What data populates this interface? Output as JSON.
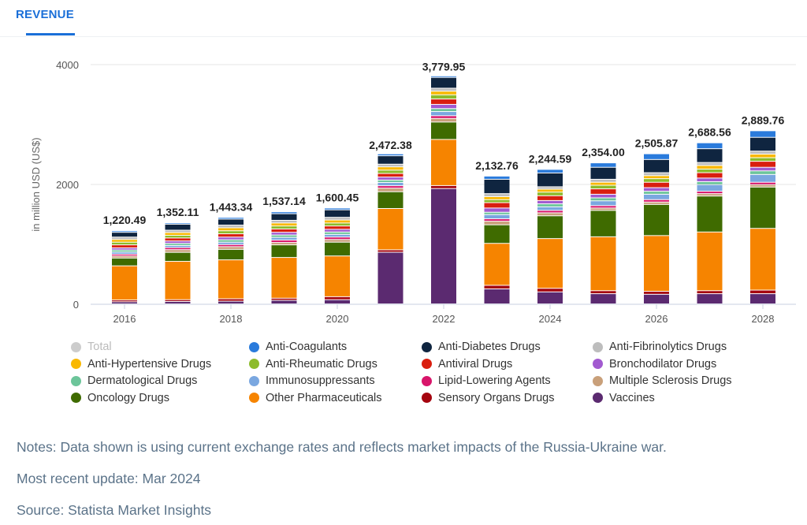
{
  "tab": {
    "label": "REVENUE"
  },
  "chart_data": {
    "type": "bar",
    "stacked": true,
    "title": "",
    "xlabel": "",
    "ylabel": "in million USD (US$)",
    "ylim": [
      0,
      4000
    ],
    "yticks": [
      "0",
      "2000",
      "4000"
    ],
    "categories": [
      "2016",
      "2017",
      "2018",
      "2019",
      "2020",
      "2021",
      "2022",
      "2023",
      "2024",
      "2025",
      "2026",
      "2027",
      "2028"
    ],
    "xtick_labels": [
      "2016",
      "2018",
      "2020",
      "2022",
      "2024",
      "2026",
      "2028"
    ],
    "totals": [
      1220.49,
      1352.11,
      1443.34,
      1537.14,
      1600.45,
      2472.38,
      3779.95,
      2132.76,
      2244.59,
      2354.0,
      2505.87,
      2688.56,
      2889.76
    ],
    "total_labels": [
      "1,220.49",
      "1,352.11",
      "1,443.34",
      "1,537.14",
      "1,600.45",
      "2,472.38",
      "3,779.95",
      "2,132.76",
      "2,244.59",
      "2,354.00",
      "2,505.87",
      "2,688.56",
      "2,889.76"
    ],
    "series": [
      {
        "name": "Vaccines",
        "color": "#5b2a70",
        "values": [
          35,
          40,
          45,
          60,
          70,
          862,
          1925,
          250,
          200,
          170,
          160,
          170,
          170
        ]
      },
      {
        "name": "Sensory Organs Drugs",
        "color": "#a5050f",
        "values": [
          30,
          30,
          40,
          35,
          50,
          40,
          50,
          60,
          60,
          50,
          50,
          50,
          60
        ]
      },
      {
        "name": "Other Pharmaceuticals",
        "color": "#f68400",
        "values": [
          570,
          640,
          650,
          680,
          680,
          690,
          770,
          700,
          830,
          900,
          930,
          980,
          1030
        ]
      },
      {
        "name": "Oncology Drugs",
        "color": "#3f6b00",
        "values": [
          130,
          150,
          175,
          210,
          230,
          280,
          290,
          310,
          380,
          440,
          520,
          600,
          690
        ]
      },
      {
        "name": "Multiple Sclerosis Drugs",
        "color": "#c9a07a",
        "values": [
          35,
          45,
          45,
          40,
          45,
          60,
          60,
          60,
          50,
          40,
          40,
          40,
          40
        ]
      },
      {
        "name": "Lipid-Lowering Agents",
        "color": "#d8156a",
        "values": [
          30,
          35,
          35,
          40,
          40,
          40,
          45,
          40,
          40,
          40,
          40,
          40,
          40
        ]
      },
      {
        "name": "Immunosuppressants",
        "color": "#7aa7e0",
        "values": [
          35,
          35,
          40,
          45,
          45,
          55,
          70,
          70,
          60,
          80,
          90,
          110,
          130
        ]
      },
      {
        "name": "Dermatological Drugs",
        "color": "#6cc59a",
        "values": [
          35,
          35,
          40,
          40,
          40,
          40,
          50,
          40,
          50,
          50,
          50,
          50,
          60
        ]
      },
      {
        "name": "Bronchodilator Drugs",
        "color": "#a25ad0",
        "values": [
          35,
          40,
          45,
          45,
          45,
          50,
          70,
          70,
          55,
          60,
          60,
          60,
          60
        ]
      },
      {
        "name": "Antiviral Drugs",
        "color": "#d91e0f",
        "values": [
          50,
          50,
          55,
          55,
          55,
          60,
          90,
          90,
          80,
          90,
          90,
          90,
          100
        ]
      },
      {
        "name": "Anti-Rheumatic Drugs",
        "color": "#8dbb2c",
        "values": [
          45,
          45,
          50,
          50,
          50,
          55,
          70,
          50,
          60,
          60,
          60,
          60,
          60
        ]
      },
      {
        "name": "Anti-Hypertensive Drugs",
        "color": "#f9b800",
        "values": [
          45,
          45,
          50,
          50,
          50,
          55,
          60,
          50,
          50,
          50,
          50,
          60,
          60
        ]
      },
      {
        "name": "Anti-Fibrinolytics Drugs",
        "color": "#bdbdbd",
        "values": [
          40,
          40,
          45,
          45,
          45,
          45,
          50,
          50,
          40,
          50,
          50,
          50,
          50
        ]
      },
      {
        "name": "Anti-Diabetes Drugs",
        "color": "#0f2540",
        "values": [
          80,
          100,
          100,
          110,
          125,
          140,
          180,
          240,
          230,
          200,
          220,
          230,
          230
        ]
      },
      {
        "name": "Anti-Coagulants",
        "color": "#2a7bdc",
        "values": [
          25,
          22,
          28,
          32,
          30,
          32,
          25,
          53,
          60,
          74,
          96,
          99,
          110
        ]
      }
    ],
    "legend": [
      {
        "name": "Total",
        "color": "#cccccc",
        "muted": true
      },
      {
        "name": "Anti-Coagulants",
        "color": "#2a7bdc"
      },
      {
        "name": "Anti-Diabetes Drugs",
        "color": "#0f2540"
      },
      {
        "name": "Anti-Fibrinolytics Drugs",
        "color": "#bdbdbd"
      },
      {
        "name": "Anti-Hypertensive Drugs",
        "color": "#f9b800"
      },
      {
        "name": "Anti-Rheumatic Drugs",
        "color": "#8dbb2c"
      },
      {
        "name": "Antiviral Drugs",
        "color": "#d91e0f"
      },
      {
        "name": "Bronchodilator Drugs",
        "color": "#a25ad0"
      },
      {
        "name": "Dermatological Drugs",
        "color": "#6cc59a"
      },
      {
        "name": "Immunosuppressants",
        "color": "#7aa7e0"
      },
      {
        "name": "Lipid-Lowering Agents",
        "color": "#d8156a"
      },
      {
        "name": "Multiple Sclerosis Drugs",
        "color": "#c9a07a"
      },
      {
        "name": "Oncology Drugs",
        "color": "#3f6b00"
      },
      {
        "name": "Other Pharmaceuticals",
        "color": "#f68400"
      },
      {
        "name": "Sensory Organs Drugs",
        "color": "#a5050f"
      },
      {
        "name": "Vaccines",
        "color": "#5b2a70"
      }
    ],
    "legend_placement": "bottom"
  },
  "notes": {
    "note": "Notes: Data shown is using current exchange rates and reflects market impacts of the Russia-Ukraine war.",
    "update": "Most recent update: Mar 2024",
    "source": "Source: Statista Market Insights"
  }
}
